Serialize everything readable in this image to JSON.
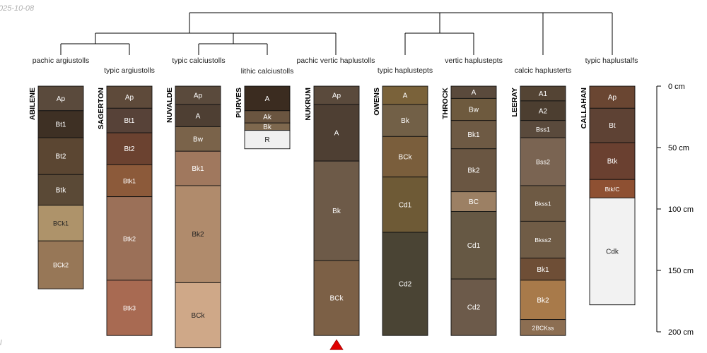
{
  "date_stamp": "025-10-08",
  "corner_mark": "l",
  "depth_axis": {
    "max_cm": 200,
    "ticks": [
      {
        "value": 0,
        "label": "0 cm"
      },
      {
        "value": 50,
        "label": "50 cm"
      },
      {
        "value": 100,
        "label": "100 cm"
      },
      {
        "value": 150,
        "label": "150 cm"
      },
      {
        "value": 200,
        "label": "200 cm"
      }
    ]
  },
  "profiles": [
    {
      "id": "ABILENE",
      "taxon": "pachic argiustolls",
      "marker": false,
      "horizons": [
        {
          "name": "Ap",
          "top": 0,
          "bottom": 20,
          "color": "#5a4a3c",
          "text_color": "#ffffff"
        },
        {
          "name": "Bt1",
          "top": 20,
          "bottom": 42,
          "color": "#3e3024",
          "text_color": "#ffffff"
        },
        {
          "name": "Bt2",
          "top": 42,
          "bottom": 72,
          "color": "#5b4632",
          "text_color": "#ffffff"
        },
        {
          "name": "Btk",
          "top": 72,
          "bottom": 97,
          "color": "#5a4936",
          "text_color": "#ffffff"
        },
        {
          "name": "BCk1",
          "top": 97,
          "bottom": 126,
          "color": "#ae936a",
          "text_color": "#222222"
        },
        {
          "name": "BCk2",
          "top": 126,
          "bottom": 165,
          "color": "#977757",
          "text_color": "#ffffff"
        }
      ]
    },
    {
      "id": "SAGERTON",
      "taxon": "typic argiustolls",
      "marker": false,
      "horizons": [
        {
          "name": "Ap",
          "top": 0,
          "bottom": 18,
          "color": "#5e4a3a",
          "text_color": "#ffffff"
        },
        {
          "name": "Bt1",
          "top": 18,
          "bottom": 38,
          "color": "#574238",
          "text_color": "#ffffff"
        },
        {
          "name": "Bt2",
          "top": 38,
          "bottom": 64,
          "color": "#6b4230",
          "text_color": "#ffffff"
        },
        {
          "name": "Btk1",
          "top": 64,
          "bottom": 90,
          "color": "#8c5a3a",
          "text_color": "#ffffff"
        },
        {
          "name": "Btk2",
          "top": 90,
          "bottom": 158,
          "color": "#9b7058",
          "text_color": "#ffffff"
        },
        {
          "name": "Btk3",
          "top": 158,
          "bottom": 203,
          "color": "#a86a52",
          "text_color": "#ffffff"
        }
      ]
    },
    {
      "id": "NUVALDE",
      "taxon": "typic calciustolls",
      "marker": false,
      "horizons": [
        {
          "name": "Ap",
          "top": 0,
          "bottom": 15,
          "color": "#5a4a3c",
          "text_color": "#ffffff"
        },
        {
          "name": "A",
          "top": 15,
          "bottom": 33,
          "color": "#4e3f33",
          "text_color": "#ffffff"
        },
        {
          "name": "Bw",
          "top": 33,
          "bottom": 53,
          "color": "#7a634a",
          "text_color": "#ffffff"
        },
        {
          "name": "Bk1",
          "top": 53,
          "bottom": 81,
          "color": "#a0785e",
          "text_color": "#ffffff"
        },
        {
          "name": "Bk2",
          "top": 81,
          "bottom": 160,
          "color": "#b08b6c",
          "text_color": "#222222"
        },
        {
          "name": "BCk",
          "top": 160,
          "bottom": 213,
          "color": "#cfa888",
          "text_color": "#222222"
        }
      ]
    },
    {
      "id": "PURVES",
      "taxon": "lithic calciustolls",
      "marker": false,
      "horizons": [
        {
          "name": "A",
          "top": 0,
          "bottom": 20,
          "color": "#3b2c20",
          "text_color": "#ffffff"
        },
        {
          "name": "Ak",
          "top": 20,
          "bottom": 30,
          "color": "#6a5540",
          "text_color": "#ffffff"
        },
        {
          "name": "Bk",
          "top": 30,
          "bottom": 36,
          "color": "#7e684e",
          "text_color": "#ffffff"
        },
        {
          "name": "R",
          "top": 36,
          "bottom": 51,
          "color": "#f0f0f0",
          "text_color": "#222222"
        }
      ]
    },
    {
      "id": "NUKRUM",
      "taxon": "pachic vertic haplustolls",
      "marker": true,
      "horizons": [
        {
          "name": "Ap",
          "top": 0,
          "bottom": 15,
          "color": "#5a4a3c",
          "text_color": "#ffffff"
        },
        {
          "name": "A",
          "top": 15,
          "bottom": 61,
          "color": "#4e3f33",
          "text_color": "#ffffff"
        },
        {
          "name": "Bk",
          "top": 61,
          "bottom": 142,
          "color": "#6d5a48",
          "text_color": "#ffffff"
        },
        {
          "name": "BCk",
          "top": 142,
          "bottom": 203,
          "color": "#7c6046",
          "text_color": "#ffffff"
        }
      ]
    },
    {
      "id": "OWENS",
      "taxon": "typic haplustepts",
      "marker": false,
      "horizons": [
        {
          "name": "A",
          "top": 0,
          "bottom": 15,
          "color": "#7a623a",
          "text_color": "#ffffff"
        },
        {
          "name": "Bk",
          "top": 15,
          "bottom": 41,
          "color": "#726047",
          "text_color": "#ffffff"
        },
        {
          "name": "BCk",
          "top": 41,
          "bottom": 74,
          "color": "#7a5e3c",
          "text_color": "#ffffff"
        },
        {
          "name": "Cd1",
          "top": 74,
          "bottom": 119,
          "color": "#6e5a36",
          "text_color": "#ffffff"
        },
        {
          "name": "Cd2",
          "top": 119,
          "bottom": 203,
          "color": "#4a4434",
          "text_color": "#ffffff"
        }
      ]
    },
    {
      "id": "THROCK",
      "taxon": "vertic haplustepts",
      "marker": false,
      "horizons": [
        {
          "name": "A",
          "top": 0,
          "bottom": 10,
          "color": "#5a4a3c",
          "text_color": "#ffffff"
        },
        {
          "name": "Bw",
          "top": 10,
          "bottom": 28,
          "color": "#6e5a3e",
          "text_color": "#ffffff"
        },
        {
          "name": "Bk1",
          "top": 28,
          "bottom": 51,
          "color": "#6e5a44",
          "text_color": "#ffffff"
        },
        {
          "name": "Bk2",
          "top": 51,
          "bottom": 86,
          "color": "#6a5642",
          "text_color": "#ffffff"
        },
        {
          "name": "BC",
          "top": 86,
          "bottom": 102,
          "color": "#9c8064",
          "text_color": "#ffffff"
        },
        {
          "name": "Cd1",
          "top": 102,
          "bottom": 157,
          "color": "#665844",
          "text_color": "#ffffff"
        },
        {
          "name": "Cd2",
          "top": 157,
          "bottom": 203,
          "color": "#6c5a4a",
          "text_color": "#ffffff"
        }
      ]
    },
    {
      "id": "LEERAY",
      "taxon": "calcic haplusterts",
      "marker": false,
      "horizons": [
        {
          "name": "A1",
          "top": 0,
          "bottom": 12,
          "color": "#544434",
          "text_color": "#ffffff"
        },
        {
          "name": "A2",
          "top": 12,
          "bottom": 28,
          "color": "#4c3e30",
          "text_color": "#ffffff"
        },
        {
          "name": "Bss1",
          "top": 28,
          "bottom": 42,
          "color": "#5a4a3c",
          "text_color": "#ffffff"
        },
        {
          "name": "Bss2",
          "top": 42,
          "bottom": 81,
          "color": "#7a6452",
          "text_color": "#ffffff"
        },
        {
          "name": "Bkss1",
          "top": 81,
          "bottom": 110,
          "color": "#6e5a44",
          "text_color": "#ffffff"
        },
        {
          "name": "Bkss2",
          "top": 110,
          "bottom": 140,
          "color": "#705c46",
          "text_color": "#ffffff"
        },
        {
          "name": "Bk1",
          "top": 140,
          "bottom": 158,
          "color": "#6e4e36",
          "text_color": "#ffffff"
        },
        {
          "name": "Bk2",
          "top": 158,
          "bottom": 190,
          "color": "#a87a4a",
          "text_color": "#ffffff"
        },
        {
          "name": "2BCKss",
          "top": 190,
          "bottom": 203,
          "color": "#8c6e52",
          "text_color": "#ffffff"
        }
      ]
    },
    {
      "id": "CALLAHAN",
      "taxon": "typic haplustalfs",
      "marker": false,
      "horizons": [
        {
          "name": "Ap",
          "top": 0,
          "bottom": 18,
          "color": "#6a4632",
          "text_color": "#ffffff"
        },
        {
          "name": "Bt",
          "top": 18,
          "bottom": 46,
          "color": "#5e4234",
          "text_color": "#ffffff"
        },
        {
          "name": "Btk",
          "top": 46,
          "bottom": 76,
          "color": "#6a4030",
          "text_color": "#ffffff"
        },
        {
          "name": "Btk/C",
          "top": 76,
          "bottom": 91,
          "color": "#8e5032",
          "text_color": "#ffffff"
        },
        {
          "name": "Cdk",
          "top": 91,
          "bottom": 178,
          "color": "#f2f2f2",
          "text_color": "#222222"
        }
      ]
    }
  ]
}
